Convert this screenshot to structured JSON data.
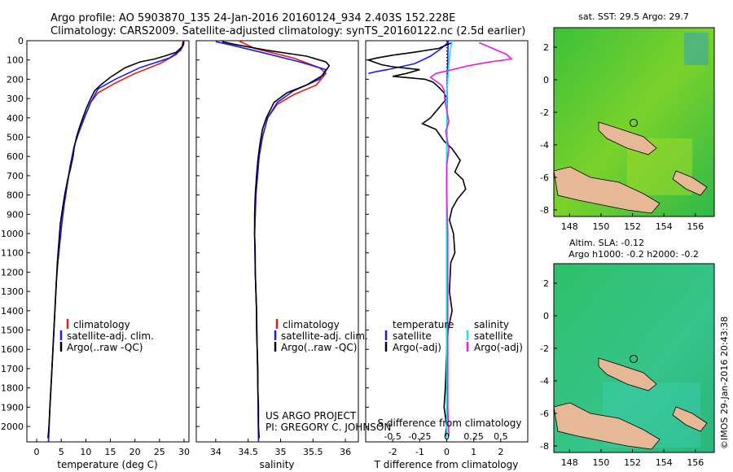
{
  "title": {
    "line1": "Argo profile: AO 5903870_135 24-Jan-2016 20160124_934 2.403S 152.228E",
    "line2": "Climatology: CARS2009. Satellite-adjusted climatology: synTS_20160122.nc (2.5d earlier)"
  },
  "credits": {
    "project": "US ARGO PROJECT",
    "pi": "PI: GREGORY C. JOHNSON",
    "watermark": "©IMOS 29-Jan-2016 20:43:38"
  },
  "colors": {
    "climatology": "#e0201b",
    "satellite": "#1a1aff",
    "argo": "#000000",
    "salinity_satellite": "#22e3e3",
    "salinity_argo": "#e020e0",
    "land": "#e6b896"
  },
  "map_labels": {
    "sst_title": "sat. SST: 29.5 Argo: 29.7",
    "sla_title1": "Altim. SLA: -0.12",
    "sla_title2": "Argo h1000: -0.2 h2000: -0.2",
    "x_ticks": [
      "148",
      "150",
      "152",
      "154",
      "156"
    ],
    "y_ticks": [
      "2",
      "0",
      "-2",
      "-4",
      "-6",
      "-8"
    ]
  },
  "chart_data": [
    {
      "type": "line",
      "name": "temperature",
      "xlabel": "temperature (deg C)",
      "ylabel": "",
      "xlim": [
        -2,
        31
      ],
      "ylim": [
        2080,
        0
      ],
      "xticks": [
        0,
        5,
        10,
        15,
        20,
        25,
        30
      ],
      "yticks": [
        0,
        100,
        200,
        300,
        400,
        500,
        600,
        700,
        800,
        900,
        1000,
        1100,
        1200,
        1300,
        1400,
        1500,
        1600,
        1700,
        1800,
        1900,
        2000
      ],
      "legend": [
        "climatology",
        "satellite-adj. clim.",
        "Argo(..raw -QC)"
      ],
      "series": [
        {
          "name": "climatology",
          "color": "#e0201b",
          "points": [
            [
              29.8,
              0
            ],
            [
              29.6,
              30
            ],
            [
              28.5,
              70
            ],
            [
              25,
              120
            ],
            [
              20,
              170
            ],
            [
              16,
              220
            ],
            [
              12.5,
              270
            ],
            [
              11,
              320
            ],
            [
              9.7,
              400
            ],
            [
              8.5,
              480
            ],
            [
              7.6,
              550
            ],
            [
              6.8,
              650
            ],
            [
              6.2,
              750
            ],
            [
              5.6,
              850
            ],
            [
              5.1,
              950
            ],
            [
              4.7,
              1050
            ],
            [
              4.3,
              1150
            ],
            [
              4.0,
              1250
            ],
            [
              3.8,
              1350
            ],
            [
              3.6,
              1450
            ],
            [
              3.3,
              1600
            ],
            [
              3.0,
              1750
            ],
            [
              2.7,
              1900
            ],
            [
              2.4,
              2080
            ]
          ]
        },
        {
          "name": "satellite-adj. clim.",
          "color": "#1a1aff",
          "points": [
            [
              30.0,
              0
            ],
            [
              29.9,
              20
            ],
            [
              29.3,
              50
            ],
            [
              27,
              90
            ],
            [
              21,
              140
            ],
            [
              16,
              200
            ],
            [
              12.5,
              250
            ],
            [
              11,
              320
            ],
            [
              9.7,
              400
            ],
            [
              8.5,
              480
            ],
            [
              7.6,
              550
            ],
            [
              6.8,
              650
            ],
            [
              6.2,
              750
            ],
            [
              5.6,
              850
            ],
            [
              5.1,
              950
            ],
            [
              4.7,
              1050
            ],
            [
              4.3,
              1150
            ],
            [
              4.0,
              1250
            ],
            [
              3.8,
              1350
            ],
            [
              3.6,
              1450
            ],
            [
              3.3,
              1600
            ],
            [
              3.0,
              1750
            ],
            [
              2.7,
              1900
            ],
            [
              2.4,
              2080
            ]
          ]
        },
        {
          "name": "Argo(..raw -QC)",
          "color": "#000000",
          "points": [
            [
              29.9,
              5
            ],
            [
              29.7,
              30
            ],
            [
              28.4,
              60
            ],
            [
              26,
              80
            ],
            [
              24,
              95
            ],
            [
              21,
              110
            ],
            [
              18,
              140
            ],
            [
              15,
              190
            ],
            [
              13,
              230
            ],
            [
              11.8,
              260
            ],
            [
              11,
              300
            ],
            [
              10.1,
              350
            ],
            [
              9.4,
              400
            ],
            [
              8.7,
              450
            ],
            [
              8.1,
              500
            ],
            [
              7.6,
              560
            ],
            [
              7.4,
              600
            ],
            [
              6.9,
              660
            ],
            [
              6.3,
              720
            ],
            [
              5.7,
              800
            ],
            [
              5.2,
              880
            ],
            [
              4.8,
              950
            ],
            [
              4.5,
              1050
            ],
            [
              4.2,
              1150
            ],
            [
              4.0,
              1250
            ],
            [
              3.8,
              1350
            ],
            [
              3.6,
              1450
            ],
            [
              3.4,
              1550
            ],
            [
              3.1,
              1700
            ],
            [
              2.8,
              1850
            ],
            [
              2.5,
              2000
            ],
            [
              2.3,
              2060
            ]
          ]
        }
      ]
    },
    {
      "type": "line",
      "name": "salinity",
      "xlabel": "salinity",
      "ylabel": "",
      "xlim": [
        33.7,
        36.2
      ],
      "ylim": [
        2080,
        0
      ],
      "xticks": [
        34,
        34.5,
        35,
        35.5,
        36
      ],
      "legend": [
        "climatology",
        "satellite-adj. clim.",
        "Argo(..raw -QC)"
      ],
      "series": [
        {
          "name": "climatology",
          "color": "#e0201b",
          "points": [
            [
              34.35,
              0
            ],
            [
              34.6,
              40
            ],
            [
              35.2,
              90
            ],
            [
              35.6,
              140
            ],
            [
              35.7,
              170
            ],
            [
              35.55,
              230
            ],
            [
              35.2,
              280
            ],
            [
              34.95,
              330
            ],
            [
              34.8,
              400
            ],
            [
              34.72,
              500
            ],
            [
              34.67,
              600
            ],
            [
              34.62,
              800
            ],
            [
              34.6,
              1000
            ],
            [
              34.61,
              1200
            ],
            [
              34.63,
              1400
            ],
            [
              34.64,
              1600
            ],
            [
              34.65,
              1800
            ],
            [
              34.66,
              2080
            ]
          ]
        },
        {
          "name": "satellite-adj. clim.",
          "color": "#1a1aff",
          "points": [
            [
              34.0,
              5
            ],
            [
              34.2,
              20
            ],
            [
              34.7,
              60
            ],
            [
              35.3,
              110
            ],
            [
              35.7,
              150
            ],
            [
              35.6,
              200
            ],
            [
              35.2,
              260
            ],
            [
              34.95,
              320
            ],
            [
              34.8,
              400
            ],
            [
              34.72,
              500
            ],
            [
              34.67,
              600
            ],
            [
              34.62,
              800
            ],
            [
              34.6,
              1000
            ],
            [
              34.61,
              1200
            ],
            [
              34.63,
              1400
            ],
            [
              34.64,
              1600
            ],
            [
              34.65,
              1800
            ],
            [
              34.66,
              2080
            ]
          ]
        },
        {
          "name": "Argo(..raw -QC)",
          "color": "#000000",
          "points": [
            [
              34.1,
              5
            ],
            [
              34.3,
              20
            ],
            [
              34.8,
              50
            ],
            [
              35.4,
              80
            ],
            [
              35.7,
              110
            ],
            [
              35.75,
              130
            ],
            [
              35.65,
              180
            ],
            [
              35.4,
              230
            ],
            [
              35.1,
              270
            ],
            [
              34.9,
              320
            ],
            [
              34.78,
              400
            ],
            [
              34.72,
              460
            ],
            [
              34.68,
              540
            ],
            [
              34.65,
              620
            ],
            [
              34.63,
              700
            ],
            [
              34.61,
              800
            ],
            [
              34.6,
              900
            ],
            [
              34.6,
              1000
            ],
            [
              34.61,
              1100
            ],
            [
              34.61,
              1200
            ],
            [
              34.62,
              1300
            ],
            [
              34.63,
              1400
            ],
            [
              34.63,
              1500
            ],
            [
              34.64,
              1600
            ],
            [
              34.65,
              1700
            ],
            [
              34.65,
              1800
            ],
            [
              34.66,
              1900
            ],
            [
              34.66,
              2000
            ],
            [
              34.67,
              2060
            ]
          ]
        }
      ]
    },
    {
      "type": "line",
      "name": "difference from climatology",
      "xlabel": "T difference from climatology",
      "x2label": "S difference from climatology",
      "xlim": [
        -3.0,
        3.0
      ],
      "x2lim": [
        -0.75,
        0.75
      ],
      "ylim": [
        2080,
        0
      ],
      "xticks": [
        -2,
        -1,
        0,
        1,
        2
      ],
      "x2ticks": [
        -0.5,
        -0.25,
        0,
        0.25,
        0.5
      ],
      "legend_headers": [
        "temperature",
        "salinity"
      ],
      "legend": [
        "satellite",
        "Argo(-adj)",
        "satellite",
        "Argo(-adj)"
      ],
      "series": [
        {
          "name": "T satellite",
          "axis": "T",
          "color": "#1a1aff",
          "points": [
            [
              -2.9,
              170
            ],
            [
              -2.6,
              160
            ],
            [
              -2.2,
              150
            ],
            [
              -1.2,
              120
            ],
            [
              -0.6,
              80
            ],
            [
              -0.2,
              40
            ],
            [
              0,
              15
            ],
            [
              0.05,
              0
            ],
            [
              0.02,
              200
            ],
            [
              0.01,
              400
            ],
            [
              0,
              700
            ],
            [
              0,
              1000
            ],
            [
              0,
              1500
            ],
            [
              0,
              2080
            ]
          ]
        },
        {
          "name": "T Argo(-adj)",
          "axis": "T",
          "color": "#000000",
          "points": [
            [
              0.2,
              10
            ],
            [
              -0.3,
              40
            ],
            [
              -1.2,
              60
            ],
            [
              -2.0,
              75
            ],
            [
              -2.6,
              90
            ],
            [
              -2.9,
              100
            ],
            [
              -2.7,
              110
            ],
            [
              -2.4,
              125
            ],
            [
              -2.0,
              135
            ],
            [
              -1.0,
              150
            ],
            [
              -1.5,
              170
            ],
            [
              -2.0,
              185
            ],
            [
              -0.8,
              200
            ],
            [
              -0.5,
              215
            ],
            [
              -0.3,
              240
            ],
            [
              -0.1,
              270
            ],
            [
              0.0,
              300
            ],
            [
              -0.6,
              400
            ],
            [
              -0.9,
              430
            ],
            [
              -0.4,
              460
            ],
            [
              -0.1,
              520
            ],
            [
              0.2,
              560
            ],
            [
              0.5,
              620
            ],
            [
              0.3,
              680
            ],
            [
              0.6,
              720
            ],
            [
              0.7,
              770
            ],
            [
              0.4,
              820
            ],
            [
              0.2,
              870
            ],
            [
              0.1,
              930
            ],
            [
              0.25,
              1000
            ],
            [
              0.3,
              1100
            ],
            [
              0.15,
              1150
            ],
            [
              0.1,
              1300
            ],
            [
              0.2,
              1400
            ],
            [
              0.05,
              1500
            ],
            [
              0.0,
              1600
            ],
            [
              -0.05,
              1800
            ],
            [
              -0.1,
              1900
            ],
            [
              0.0,
              2000
            ],
            [
              -0.05,
              2050
            ]
          ]
        },
        {
          "name": "S satellite",
          "axis": "S",
          "color": "#22e3e3",
          "points": [
            [
              0.05,
              0
            ],
            [
              0.03,
              60
            ],
            [
              0.02,
              120
            ],
            [
              0.01,
              200
            ],
            [
              0.0,
              300
            ],
            [
              0.0,
              450
            ],
            [
              0.0,
              700
            ],
            [
              0.0,
              1000
            ],
            [
              0.0,
              1500
            ],
            [
              0.0,
              2080
            ]
          ]
        },
        {
          "name": "S Argo(-adj)",
          "axis": "S",
          "color": "#e020e0",
          "points": [
            [
              0.3,
              10
            ],
            [
              0.55,
              70
            ],
            [
              0.6,
              95
            ],
            [
              0.4,
              110
            ],
            [
              0.2,
              130
            ],
            [
              0.05,
              150
            ],
            [
              -0.1,
              170
            ],
            [
              -0.15,
              190
            ],
            [
              -0.05,
              230
            ],
            [
              -0.02,
              260
            ],
            [
              -0.02,
              300
            ],
            [
              0.0,
              360
            ],
            [
              0.02,
              420
            ],
            [
              -0.01,
              470
            ],
            [
              0.02,
              560
            ],
            [
              0.0,
              650
            ],
            [
              0.0,
              800
            ],
            [
              0.01,
              1000
            ],
            [
              0.01,
              1300
            ],
            [
              0.01,
              1600
            ],
            [
              0.01,
              1900
            ],
            [
              0.02,
              2050
            ]
          ]
        }
      ]
    }
  ]
}
